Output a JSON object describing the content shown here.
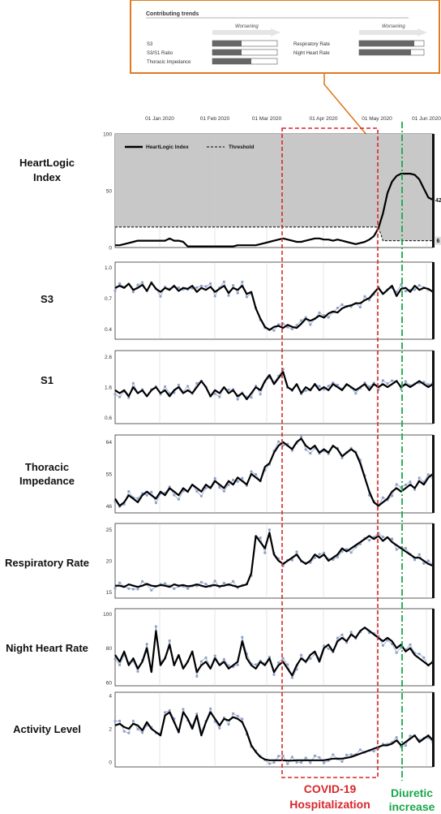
{
  "inset": {
    "title": "Contributing trends",
    "worsening_label": "Worsening",
    "trends": [
      {
        "label": "S3",
        "fraction": 0.45
      },
      {
        "label": "S3/S1 Ratio",
        "fraction": 0.45
      },
      {
        "label": "Thoracic Impedance",
        "fraction": 0.6
      },
      {
        "label": "Respiratory Rate",
        "fraction": 0.85
      },
      {
        "label": "Night Heart Rate",
        "fraction": 0.8
      }
    ]
  },
  "colors": {
    "inset_border": "#e07b22",
    "covid": "#d9262b",
    "diuretic": "#19a84a",
    "trace": "#000000",
    "dots": "#8fa2c8",
    "shade": "#c8c8c8"
  },
  "annotations": {
    "covid_line1": "COVID-19",
    "covid_line2": "Hospitalization",
    "diuretic_line1": "Diuretic",
    "diuretic_line2": "increase"
  },
  "chart_data": {
    "type": "line",
    "x_ticks": [
      "01 Jan 2020",
      "01 Feb 2020",
      "01 Mar 2020",
      "01 Apr 2020",
      "01 May 2020",
      "01 Jun 2020"
    ],
    "legend": {
      "index": "HeartLogic Index",
      "threshold": "Threshold"
    },
    "panels": [
      {
        "name": "HeartLogic Index",
        "label1": "HeartLogic",
        "label2": "Index",
        "ylim": [
          0,
          100
        ],
        "ticks": [
          "100",
          "50",
          "0"
        ],
        "tick_values": [
          100,
          50,
          0
        ],
        "end_value": "42",
        "threshold_end_value": "6",
        "series": [
          2,
          2,
          3,
          4,
          5,
          6,
          6,
          6,
          6,
          6,
          6,
          6,
          8,
          6,
          6,
          5,
          1,
          1,
          1,
          1,
          1,
          1,
          1,
          1,
          1,
          1,
          1,
          2,
          2,
          2,
          2,
          2,
          3,
          4,
          5,
          6,
          7,
          8,
          7,
          6,
          5,
          5,
          6,
          7,
          8,
          8,
          7,
          7,
          6,
          7,
          6,
          5,
          4,
          3,
          4,
          5,
          7,
          10,
          17,
          30,
          48,
          58,
          63,
          65,
          65,
          65,
          64,
          60,
          52,
          44,
          42
        ],
        "threshold": [
          18,
          18,
          18,
          18,
          18,
          18,
          18,
          18,
          18,
          18,
          18,
          18,
          18,
          18,
          18,
          18,
          18,
          18,
          18,
          18,
          18,
          18,
          18,
          18,
          18,
          18,
          18,
          18,
          18,
          18,
          18,
          18,
          18,
          18,
          18,
          18,
          18,
          18,
          18,
          18,
          18,
          18,
          18,
          18,
          18,
          18,
          18,
          18,
          18,
          18,
          18,
          18,
          18,
          18,
          18,
          18,
          18,
          18,
          18,
          6,
          6,
          6,
          6,
          6,
          6,
          6,
          6,
          6,
          6,
          6,
          6
        ]
      },
      {
        "name": "S3",
        "label1": "S3",
        "label2": "",
        "ylim": [
          0.3,
          1.05
        ],
        "ticks": [
          "1.0",
          "0.7",
          "0.4"
        ],
        "tick_values": [
          1.0,
          0.7,
          0.4
        ],
        "series": [
          0.8,
          0.82,
          0.8,
          0.84,
          0.78,
          0.8,
          0.83,
          0.77,
          0.85,
          0.79,
          0.76,
          0.8,
          0.78,
          0.82,
          0.77,
          0.8,
          0.79,
          0.82,
          0.76,
          0.8,
          0.78,
          0.81,
          0.76,
          0.79,
          0.82,
          0.75,
          0.8,
          0.78,
          0.82,
          0.74,
          0.76,
          0.6,
          0.5,
          0.42,
          0.39,
          0.42,
          0.43,
          0.41,
          0.44,
          0.42,
          0.41,
          0.45,
          0.5,
          0.48,
          0.5,
          0.53,
          0.51,
          0.55,
          0.57,
          0.56,
          0.6,
          0.62,
          0.63,
          0.65,
          0.65,
          0.68,
          0.7,
          0.75,
          0.8,
          0.74,
          0.78,
          0.82,
          0.72,
          0.79,
          0.8,
          0.76,
          0.82,
          0.78,
          0.8,
          0.79,
          0.76
        ]
      },
      {
        "name": "S1",
        "label1": "S1",
        "label2": "",
        "ylim": [
          0.4,
          2.8
        ],
        "ticks": [
          "2.6",
          "1.6",
          "0.6"
        ],
        "tick_values": [
          2.6,
          1.6,
          0.6
        ],
        "series": [
          1.5,
          1.4,
          1.5,
          1.3,
          1.6,
          1.4,
          1.5,
          1.3,
          1.5,
          1.6,
          1.4,
          1.5,
          1.3,
          1.5,
          1.6,
          1.4,
          1.5,
          1.4,
          1.6,
          1.8,
          1.6,
          1.3,
          1.5,
          1.4,
          1.6,
          1.4,
          1.5,
          1.3,
          1.4,
          1.2,
          1.4,
          1.6,
          1.5,
          1.8,
          2.0,
          1.7,
          1.9,
          2.1,
          1.6,
          1.5,
          1.7,
          1.4,
          1.6,
          1.5,
          1.7,
          1.5,
          1.6,
          1.5,
          1.7,
          1.6,
          1.5,
          1.7,
          1.6,
          1.5,
          1.6,
          1.7,
          1.5,
          1.7,
          1.6,
          1.7,
          1.6,
          1.7,
          1.8,
          1.6,
          1.7,
          1.6,
          1.7,
          1.8,
          1.7,
          1.6,
          1.7
        ]
      },
      {
        "name": "Thoracic Impedance",
        "label1": "Thoracic",
        "label2": "Impedance",
        "ylim": [
          44,
          66
        ],
        "ticks": [
          "64",
          "55",
          "46"
        ],
        "tick_values": [
          64,
          55,
          46
        ],
        "series": [
          48,
          46,
          47,
          49,
          48,
          47,
          49,
          50,
          49,
          48,
          50,
          49,
          51,
          50,
          49,
          51,
          50,
          52,
          51,
          50,
          52,
          51,
          53,
          52,
          51,
          53,
          52,
          54,
          53,
          52,
          55,
          54,
          53,
          57,
          58,
          61,
          63,
          64,
          63,
          62,
          64,
          65,
          63,
          62,
          63,
          61,
          62,
          61,
          63,
          62,
          60,
          61,
          62,
          61,
          58,
          54,
          50,
          47,
          46,
          47,
          48,
          50,
          51,
          50,
          51,
          52,
          51,
          53,
          52,
          54,
          55
        ]
      },
      {
        "name": "Respiratory Rate",
        "label1": "Respiratory Rate",
        "label2": "",
        "ylim": [
          14,
          26
        ],
        "ticks": [
          "25",
          "20",
          "15"
        ],
        "tick_values": [
          25,
          20,
          15
        ],
        "series": [
          16,
          16,
          15.8,
          16.2,
          16,
          15.8,
          16,
          16.3,
          16,
          15.9,
          16.1,
          16,
          15.8,
          16.2,
          16,
          16.1,
          15.9,
          16,
          16.2,
          16,
          15.8,
          16,
          16.1,
          15.9,
          16,
          16.2,
          16,
          15.8,
          16,
          16.2,
          18,
          24,
          23,
          22,
          24.5,
          21,
          20,
          19.5,
          20,
          20.5,
          21,
          20,
          19.5,
          20,
          21,
          20.5,
          21,
          20,
          20.5,
          21,
          22,
          21.5,
          22,
          22.5,
          23,
          23.5,
          24,
          23.5,
          24,
          23.2,
          23.8,
          23,
          22.5,
          22,
          21.5,
          21,
          20.5,
          20.5,
          20,
          19.5,
          19.2
        ]
      },
      {
        "name": "Night Heart Rate",
        "label1": "Night Heart Rate",
        "label2": "",
        "ylim": [
          58,
          103
        ],
        "ticks": [
          "100",
          "80",
          "60"
        ],
        "tick_values": [
          100,
          80,
          60
        ],
        "series": [
          76,
          72,
          78,
          70,
          74,
          68,
          72,
          80,
          66,
          90,
          70,
          74,
          82,
          70,
          76,
          68,
          72,
          78,
          66,
          70,
          72,
          68,
          74,
          70,
          72,
          68,
          70,
          72,
          84,
          74,
          70,
          68,
          72,
          70,
          74,
          66,
          70,
          72,
          68,
          64,
          70,
          74,
          72,
          76,
          78,
          72,
          80,
          82,
          78,
          84,
          86,
          84,
          88,
          86,
          90,
          92,
          90,
          88,
          86,
          84,
          86,
          84,
          80,
          82,
          78,
          80,
          76,
          74,
          72,
          70,
          72
        ]
      },
      {
        "name": "Activity Level",
        "label1": "Activity Level",
        "label2": "",
        "ylim": [
          -0.3,
          4.2
        ],
        "ticks": [
          "4",
          "2",
          "0"
        ],
        "tick_values": [
          4,
          2,
          0
        ],
        "series": [
          2.2,
          2.3,
          2.1,
          2.0,
          2.3,
          2.2,
          1.9,
          2.4,
          2.0,
          1.8,
          1.6,
          2.8,
          3.0,
          2.4,
          1.8,
          3.0,
          2.6,
          2.0,
          2.8,
          1.6,
          2.4,
          3.0,
          2.6,
          2.2,
          2.6,
          2.5,
          2.7,
          2.6,
          2.4,
          1.8,
          1.0,
          0.6,
          0.3,
          0.15,
          0.1,
          0.1,
          0.1,
          0.1,
          0.08,
          0.08,
          0.1,
          0.1,
          0.1,
          0.1,
          0.1,
          0.1,
          0.1,
          0.15,
          0.2,
          0.2,
          0.2,
          0.25,
          0.3,
          0.4,
          0.5,
          0.6,
          0.7,
          0.8,
          0.9,
          1.0,
          1.0,
          1.1,
          1.3,
          1.0,
          1.2,
          1.4,
          1.6,
          1.2,
          1.4,
          1.6,
          1.3
        ]
      }
    ]
  }
}
